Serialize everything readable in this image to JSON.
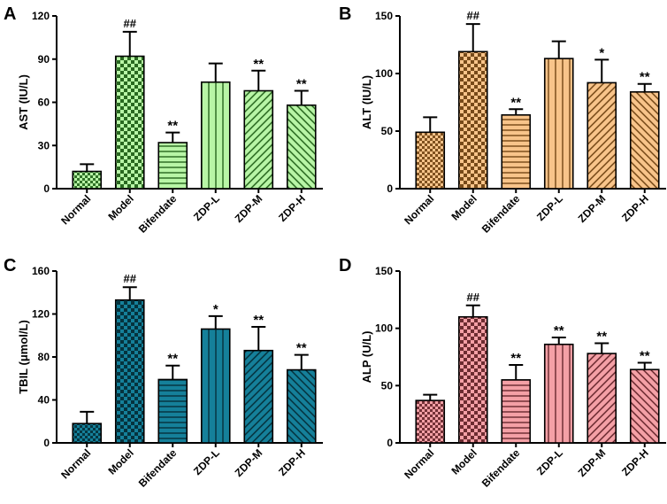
{
  "figure": {
    "panels": [
      "A",
      "B",
      "C",
      "D"
    ]
  },
  "chart_data": [
    {
      "panel": "A",
      "type": "bar",
      "title": "",
      "xlabel": "",
      "ylabel": "AST (IU/L)",
      "ylim": [
        0,
        120
      ],
      "yticks": [
        "0",
        "30",
        "60",
        "90",
        "120"
      ],
      "categories": [
        "Normal",
        "Model",
        "Bifendate",
        "ZDP-L",
        "ZDP-M",
        "ZDP-H"
      ],
      "values": [
        12,
        92,
        32,
        74,
        68,
        58
      ],
      "errors": [
        5,
        17,
        7,
        13,
        14,
        10
      ],
      "significance": [
        "",
        "##",
        "**",
        "",
        "**",
        "**"
      ],
      "colors": {
        "fill": "#b8f5a6",
        "stroke": "#1a5a12"
      }
    },
    {
      "panel": "B",
      "type": "bar",
      "title": "",
      "xlabel": "",
      "ylabel": "ALT (IU/L)",
      "ylim": [
        0,
        150
      ],
      "yticks": [
        "0",
        "50",
        "100",
        "150"
      ],
      "categories": [
        "Normal",
        "Model",
        "Bifendate",
        "ZDP-L",
        "ZDP-M",
        "ZDP-H"
      ],
      "values": [
        49,
        119,
        64,
        113,
        92,
        84
      ],
      "errors": [
        13,
        24,
        5,
        15,
        20,
        7
      ],
      "significance": [
        "",
        "##",
        "**",
        "",
        "*",
        "**"
      ],
      "colors": {
        "fill": "#f8c48a",
        "stroke": "#6a3d0c"
      }
    },
    {
      "panel": "C",
      "type": "bar",
      "title": "",
      "xlabel": "",
      "ylabel": "TBIL (μmol/L)",
      "ylim": [
        0,
        160
      ],
      "yticks": [
        "0",
        "40",
        "80",
        "120",
        "160"
      ],
      "categories": [
        "Normal",
        "Model",
        "Bifendate",
        "ZDP-L",
        "ZDP-M",
        "ZDP-H"
      ],
      "values": [
        18,
        133,
        59,
        106,
        86,
        68
      ],
      "errors": [
        11,
        12,
        13,
        12,
        22,
        14
      ],
      "significance": [
        "",
        "##",
        "**",
        "*",
        "**",
        "**"
      ],
      "colors": {
        "fill": "#15809a",
        "stroke": "#032a34"
      }
    },
    {
      "panel": "D",
      "type": "bar",
      "title": "",
      "xlabel": "",
      "ylabel": "ALP (U/L)",
      "ylim": [
        0,
        150
      ],
      "yticks": [
        "0",
        "50",
        "100",
        "150"
      ],
      "categories": [
        "Normal",
        "Model",
        "Bifendate",
        "ZDP-L",
        "ZDP-M",
        "ZDP-H"
      ],
      "values": [
        37,
        110,
        55,
        86,
        78,
        64
      ],
      "errors": [
        5,
        10,
        13,
        6,
        9,
        6
      ],
      "significance": [
        "",
        "##",
        "**",
        "**",
        "**",
        "**"
      ],
      "colors": {
        "fill": "#f4a0a6",
        "stroke": "#5e1f25"
      }
    }
  ]
}
